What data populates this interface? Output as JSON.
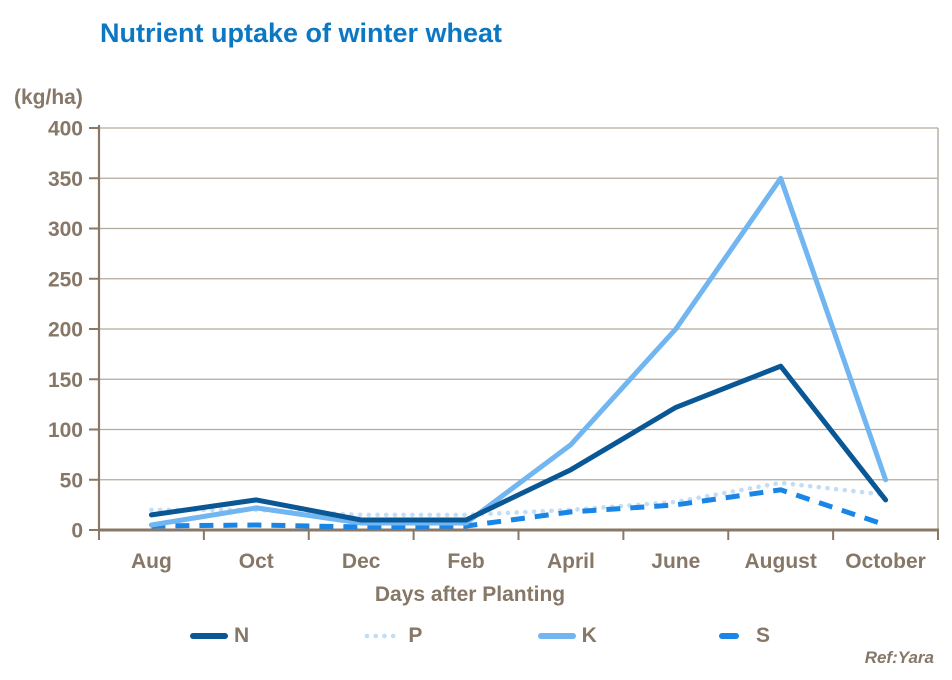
{
  "title": "Nutrient uptake of winter wheat",
  "y_axis_unit_label": "(kg/ha)",
  "ref_label": "Ref:Yara",
  "colors": {
    "title": "#0c78c4",
    "axis_text": "#867767",
    "axis_line": "#8a7866",
    "grid": "#b3aa9e",
    "background": "#ffffff"
  },
  "chart_data": {
    "type": "line",
    "title": "Nutrient uptake of winter wheat",
    "xlabel": "Days after Planting",
    "ylabel": "(kg/ha)",
    "categories": [
      "Aug",
      "Oct",
      "Dec",
      "Feb",
      "April",
      "June",
      "August",
      "October"
    ],
    "series": [
      {
        "name": "N",
        "color": "#0a5796",
        "style": "solid",
        "values": [
          15,
          30,
          10,
          10,
          60,
          122,
          163,
          30
        ]
      },
      {
        "name": "P",
        "color": "#c3ddf5",
        "style": "dotted",
        "values": [
          20,
          20,
          15,
          15,
          20,
          28,
          47,
          35
        ]
      },
      {
        "name": "K",
        "color": "#71b5f1",
        "style": "solid",
        "values": [
          5,
          22,
          7,
          7,
          85,
          200,
          350,
          50
        ]
      },
      {
        "name": "S",
        "color": "#1985e6",
        "style": "dashed",
        "values": [
          4,
          5,
          3,
          4,
          18,
          25,
          40,
          5
        ]
      }
    ],
    "ylim": [
      0,
      400
    ],
    "ytick_step": 50,
    "grid": true,
    "legend_position": "bottom"
  }
}
